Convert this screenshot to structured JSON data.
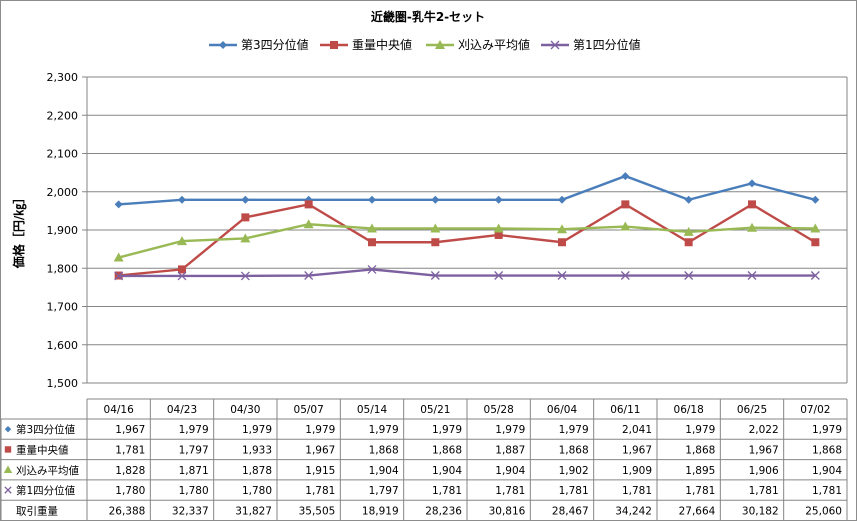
{
  "chart_data": {
    "type": "line",
    "title": "近畿圏-乳牛2-セット",
    "ylabel": "価格［円/㎏］",
    "ylim": [
      1500,
      2300
    ],
    "yticks": [
      1500,
      1600,
      1700,
      1800,
      1900,
      2000,
      2100,
      2200,
      2300
    ],
    "ytick_labels": [
      "1,500",
      "1,600",
      "1,700",
      "1,800",
      "1,900",
      "2,000",
      "2,100",
      "2,200",
      "2,300"
    ],
    "categories": [
      "04/16",
      "04/23",
      "04/30",
      "05/07",
      "05/14",
      "05/21",
      "05/28",
      "06/04",
      "06/11",
      "06/18",
      "06/25",
      "07/02"
    ],
    "legend_position": "top",
    "grid": "horizontal",
    "series": [
      {
        "name": "第3四分位値",
        "color": "#4a7ebb",
        "marker": "diamond",
        "values": [
          1967,
          1979,
          1979,
          1979,
          1979,
          1979,
          1979,
          1979,
          2041,
          1979,
          2022,
          1979
        ],
        "labels": [
          "1,967",
          "1,979",
          "1,979",
          "1,979",
          "1,979",
          "1,979",
          "1,979",
          "1,979",
          "2,041",
          "1,979",
          "2,022",
          "1,979"
        ]
      },
      {
        "name": "重量中央値",
        "color": "#be4b48",
        "marker": "square",
        "values": [
          1781,
          1797,
          1933,
          1967,
          1868,
          1868,
          1887,
          1868,
          1967,
          1868,
          1967,
          1868
        ],
        "labels": [
          "1,781",
          "1,797",
          "1,933",
          "1,967",
          "1,868",
          "1,868",
          "1,887",
          "1,868",
          "1,967",
          "1,868",
          "1,967",
          "1,868"
        ]
      },
      {
        "name": "刈込み平均値",
        "color": "#98b954",
        "marker": "triangle",
        "values": [
          1828,
          1871,
          1878,
          1915,
          1904,
          1904,
          1904,
          1902,
          1909,
          1895,
          1906,
          1904
        ],
        "labels": [
          "1,828",
          "1,871",
          "1,878",
          "1,915",
          "1,904",
          "1,904",
          "1,904",
          "1,902",
          "1,909",
          "1,895",
          "1,906",
          "1,904"
        ]
      },
      {
        "name": "第1四分位値",
        "color": "#7d60a0",
        "marker": "x",
        "values": [
          1780,
          1780,
          1780,
          1781,
          1797,
          1781,
          1781,
          1781,
          1781,
          1781,
          1781,
          1781
        ],
        "labels": [
          "1,780",
          "1,780",
          "1,780",
          "1,781",
          "1,797",
          "1,781",
          "1,781",
          "1,781",
          "1,781",
          "1,781",
          "1,781",
          "1,781"
        ]
      }
    ],
    "table_extra_row": {
      "name": "取引重量",
      "values": [
        26388,
        32337,
        31827,
        35505,
        18919,
        28236,
        30816,
        28467,
        34242,
        27664,
        30182,
        25060
      ],
      "labels": [
        "26,388",
        "32,337",
        "31,827",
        "35,505",
        "18,919",
        "28,236",
        "30,816",
        "28,467",
        "34,242",
        "27,664",
        "30,182",
        "25,060"
      ]
    }
  }
}
